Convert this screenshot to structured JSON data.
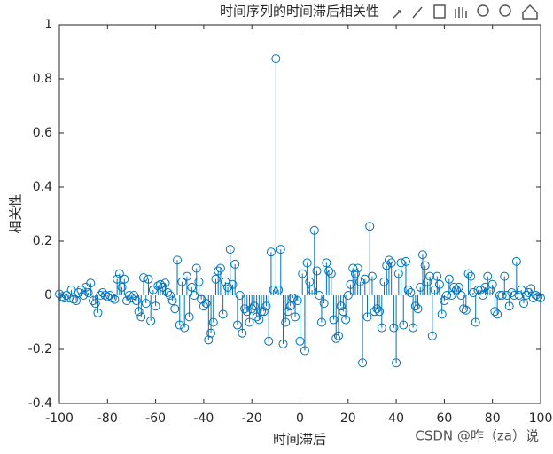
{
  "chart_data": {
    "type": "stem",
    "title": "时间序列的时间滞后相关性",
    "xlabel": "时间滞后",
    "ylabel": "相关性",
    "watermark": "CSDN @咋（za）说",
    "color": "#0072bd",
    "xlim": [
      -100,
      100
    ],
    "xticks": [
      -100,
      -80,
      -60,
      -40,
      -20,
      0,
      20,
      40,
      60,
      80,
      100
    ],
    "ylim": [
      -0.4,
      1
    ],
    "yticks": [
      -0.4,
      -0.2,
      0,
      0.2,
      0.4,
      0.6,
      0.8,
      1
    ],
    "x": [
      -100,
      -99,
      -98,
      -97,
      -96,
      -95,
      -94,
      -93,
      -92,
      -91,
      -90,
      -89,
      -88,
      -87,
      -86,
      -85,
      -84,
      -83,
      -82,
      -81,
      -80,
      -79,
      -78,
      -77,
      -76,
      -75,
      -74,
      -73,
      -72,
      -71,
      -70,
      -69,
      -68,
      -67,
      -66,
      -65,
      -64,
      -63,
      -62,
      -61,
      -60,
      -59,
      -58,
      -57,
      -56,
      -55,
      -54,
      -53,
      -52,
      -51,
      -50,
      -49,
      -48,
      -47,
      -46,
      -45,
      -44,
      -43,
      -42,
      -41,
      -40,
      -39,
      -38,
      -37,
      -36,
      -35,
      -34,
      -33,
      -32,
      -31,
      -30,
      -29,
      -28,
      -27,
      -26,
      -25,
      -24,
      -23,
      -22,
      -21,
      -20,
      -19,
      -18,
      -17,
      -16,
      -15,
      -14,
      -13,
      -12,
      -11,
      -10,
      -9,
      -8,
      -7,
      -6,
      -5,
      -4,
      -3,
      -2,
      -1,
      0,
      1,
      2,
      3,
      4,
      5,
      6,
      7,
      8,
      9,
      10,
      11,
      12,
      13,
      14,
      15,
      16,
      17,
      18,
      19,
      20,
      21,
      22,
      23,
      24,
      25,
      26,
      27,
      28,
      29,
      30,
      31,
      32,
      33,
      34,
      35,
      36,
      37,
      38,
      39,
      40,
      41,
      42,
      43,
      44,
      45,
      46,
      47,
      48,
      49,
      50,
      51,
      52,
      53,
      54,
      55,
      56,
      57,
      58,
      59,
      60,
      61,
      62,
      63,
      64,
      65,
      66,
      67,
      68,
      69,
      70,
      71,
      72,
      73,
      74,
      75,
      76,
      77,
      78,
      79,
      80,
      81,
      82,
      83,
      84,
      85,
      86,
      87,
      88,
      89,
      90,
      91,
      92,
      93,
      94,
      95,
      96,
      97,
      98,
      99,
      100
    ],
    "values": [
      0.005,
      -0.005,
      -0.01,
      0.0,
      -0.01,
      0.02,
      -0.015,
      -0.02,
      0.01,
      0.02,
      0.0,
      0.03,
      0.01,
      0.045,
      -0.02,
      -0.03,
      -0.065,
      0.0,
      0.01,
      0.0,
      -0.005,
      0.0,
      -0.01,
      -0.015,
      0.06,
      0.08,
      0.03,
      0.06,
      -0.02,
      0.0,
      -0.01,
      0.0,
      -0.02,
      -0.06,
      -0.08,
      0.065,
      -0.03,
      0.06,
      -0.095,
      0.02,
      -0.04,
      0.035,
      0.04,
      0.03,
      0.045,
      0.01,
      0.0,
      -0.02,
      -0.05,
      0.13,
      -0.11,
      0.05,
      -0.12,
      0.07,
      -0.08,
      0.03,
      0.0,
      0.1,
      0.05,
      -0.015,
      -0.04,
      -0.03,
      -0.165,
      -0.14,
      -0.1,
      0.06,
      0.09,
      0.1,
      -0.07,
      0.05,
      0.03,
      0.17,
      0.04,
      0.115,
      -0.11,
      0.0,
      -0.14,
      -0.05,
      -0.06,
      -0.1,
      -0.05,
      -0.04,
      -0.08,
      -0.09,
      -0.06,
      -0.06,
      -0.04,
      -0.17,
      0.16,
      0.02,
      0.875,
      0.02,
      0.17,
      -0.18,
      -0.1,
      -0.06,
      -0.04,
      -0.01,
      -0.08,
      -0.02,
      -0.17,
      0.08,
      -0.205,
      0.12,
      0.05,
      0.02,
      0.24,
      0.09,
      0.0,
      -0.1,
      -0.03,
      0.12,
      0.09,
      0.08,
      -0.09,
      -0.16,
      -0.15,
      -0.04,
      -0.06,
      -0.09,
      0.0,
      0.04,
      0.1,
      0.08,
      0.1,
      0.05,
      -0.25,
      0.06,
      -0.08,
      0.255,
      0.07,
      -0.06,
      -0.05,
      -0.06,
      -0.12,
      0.05,
      0.11,
      0.13,
      0.12,
      -0.12,
      -0.25,
      0.08,
      0.12,
      -0.11,
      0.125,
      0.02,
      0.01,
      -0.12,
      -0.04,
      -0.05,
      0.03,
      0.15,
      0.11,
      0.05,
      0.07,
      -0.15,
      0.02,
      0.07,
      0.04,
      -0.07,
      -0.02,
      0.0,
      0.06,
      0.0,
      0.03,
      0.02,
      0.03,
      0.0,
      -0.05,
      -0.055,
      0.08,
      0.07,
      0.01,
      -0.1,
      0.02,
      0.02,
      0.0,
      0.03,
      0.07,
      0.02,
      0.04,
      -0.06,
      -0.07,
      0.0,
      0.0,
      0.07,
      0.0,
      -0.04,
      0.01,
      0.0,
      0.125,
      0.0,
      0.02,
      -0.03,
      0.0,
      0.01,
      0.025,
      -0.01,
      0.0,
      -0.005,
      -0.01
    ]
  }
}
